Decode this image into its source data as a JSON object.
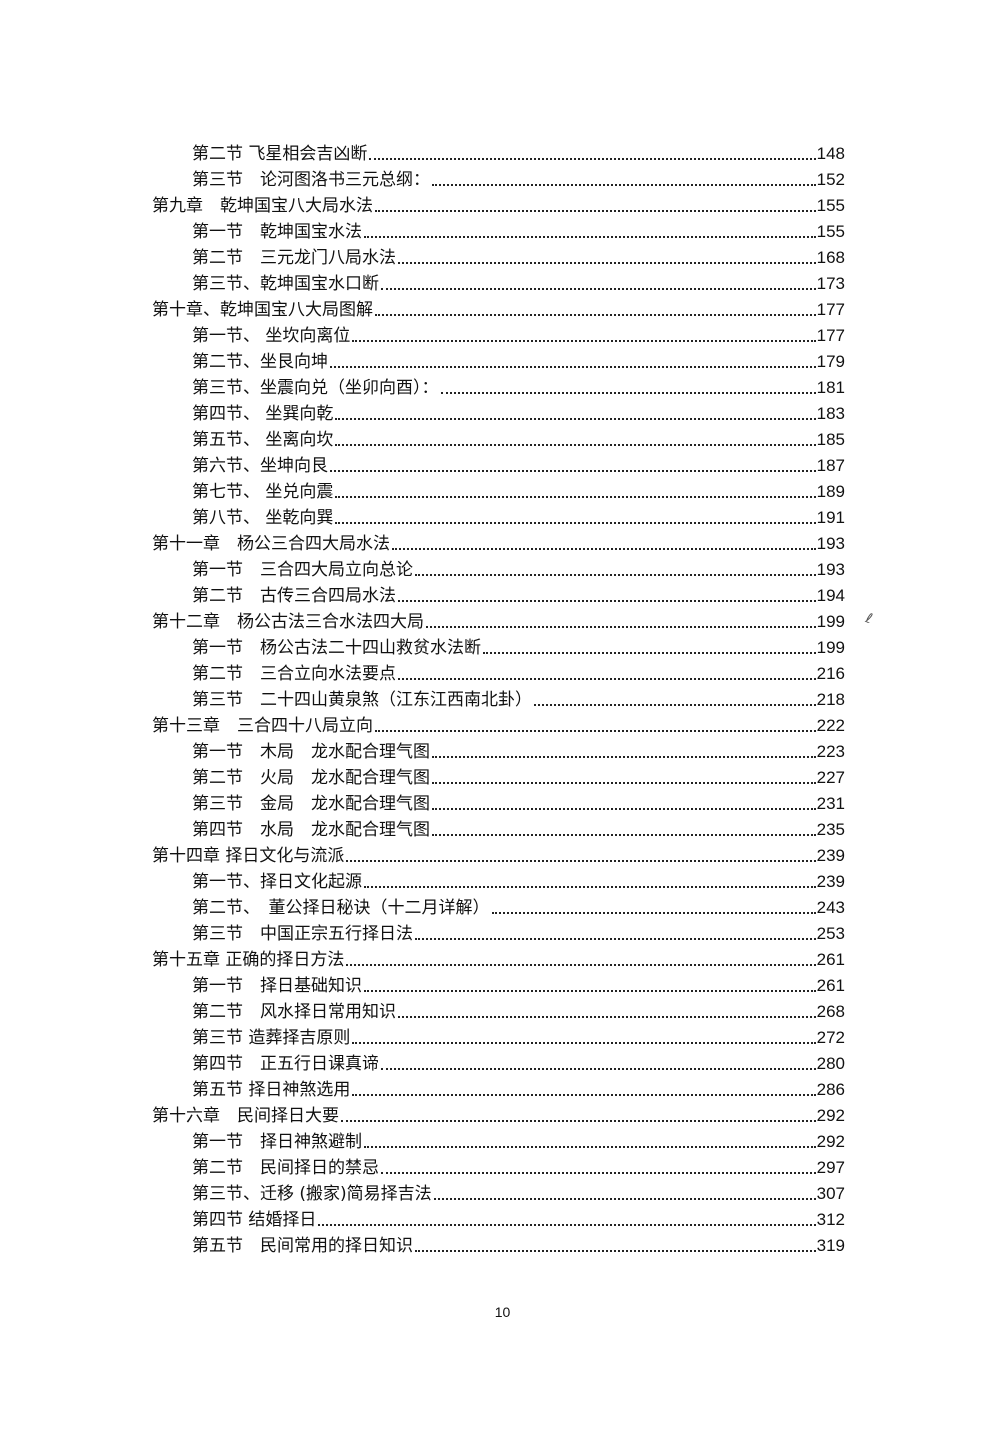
{
  "toc": [
    {
      "level": "section",
      "title": "第二节 飞星相会吉凶断",
      "page": "148"
    },
    {
      "level": "section",
      "title": "第三节　论河图洛书三元总纲：",
      "page": "152"
    },
    {
      "level": "chapter",
      "title": "第九章　乾坤国宝八大局水法",
      "page": "155"
    },
    {
      "level": "section",
      "title": "第一节　乾坤国宝水法",
      "page": "155"
    },
    {
      "level": "section",
      "title": "第二节　三元龙门八局水法",
      "page": "168"
    },
    {
      "level": "section",
      "title": "第三节、乾坤国宝水口断",
      "page": "173"
    },
    {
      "level": "chapter",
      "title": "第十章、乾坤国宝八大局图解",
      "page": "177"
    },
    {
      "level": "section",
      "title": "第一节、 坐坎向离位",
      "page": "177"
    },
    {
      "level": "section",
      "title": "第二节、坐艮向坤",
      "page": "179"
    },
    {
      "level": "section",
      "title": "第三节、坐震向兑（坐卯向酉）：",
      "page": "181"
    },
    {
      "level": "section",
      "title": "第四节、 坐巽向乾",
      "page": "183"
    },
    {
      "level": "section",
      "title": "第五节、 坐离向坎",
      "page": "185"
    },
    {
      "level": "section",
      "title": "第六节、坐坤向艮",
      "page": "187"
    },
    {
      "level": "section",
      "title": "第七节、 坐兑向震",
      "page": "189"
    },
    {
      "level": "section",
      "title": "第八节、 坐乾向巽",
      "page": "191"
    },
    {
      "level": "chapter",
      "title": "第十一章　杨公三合四大局水法",
      "page": "193"
    },
    {
      "level": "section",
      "title": "第一节　三合四大局立向总论",
      "page": "193"
    },
    {
      "level": "section",
      "title": "第二节　古传三合四局水法",
      "page": "194"
    },
    {
      "level": "chapter",
      "title": "第十二章　杨公古法三合水法四大局",
      "page": "199"
    },
    {
      "level": "section",
      "title": "第一节　杨公古法二十四山救贫水法断",
      "page": "199"
    },
    {
      "level": "section",
      "title": "第二节　三合立向水法要点",
      "page": "216"
    },
    {
      "level": "section",
      "title": "第三节　二十四山黄泉煞（江东江西南北卦）",
      "page": "218"
    },
    {
      "level": "chapter",
      "title": "第十三章　三合四十八局立向",
      "page": "222"
    },
    {
      "level": "section",
      "title": "第一节　木局　龙水配合理气图",
      "page": "223"
    },
    {
      "level": "section",
      "title": "第二节　火局　龙水配合理气图",
      "page": "227"
    },
    {
      "level": "section",
      "title": "第三节　金局　龙水配合理气图",
      "page": "231"
    },
    {
      "level": "section",
      "title": "第四节　水局　龙水配合理气图",
      "page": "235"
    },
    {
      "level": "chapter",
      "title": "第十四章 择日文化与流派",
      "page": "239"
    },
    {
      "level": "section",
      "title": "第一节、择日文化起源",
      "page": "239"
    },
    {
      "level": "section",
      "title": "第二节、　董公择日秘诀（十二月详解）",
      "page": "243"
    },
    {
      "level": "section",
      "title": "第三节　中国正宗五行择日法",
      "page": "253"
    },
    {
      "level": "chapter",
      "title": "第十五章 正确的择日方法",
      "page": "261"
    },
    {
      "level": "section",
      "title": "第一节　择日基础知识",
      "page": "261"
    },
    {
      "level": "section",
      "title": "第二节　风水择日常用知识",
      "page": "268"
    },
    {
      "level": "section",
      "title": "第三节 造葬择吉原则",
      "page": "272"
    },
    {
      "level": "section",
      "title": "第四节　正五行日课真谛",
      "page": "280"
    },
    {
      "level": "section",
      "title": "第五节 择日神煞选用",
      "page": "286"
    },
    {
      "level": "chapter",
      "title": "第十六章　民间择日大要",
      "page": "292"
    },
    {
      "level": "section",
      "title": "第一节　择日神煞避制",
      "page": "292"
    },
    {
      "level": "section",
      "title": "第二节　民间择日的禁忌",
      "page": "297"
    },
    {
      "level": "section",
      "title": "第三节、迁移 (搬家)简易择吉法",
      "page": "307"
    },
    {
      "level": "section",
      "title": "第四节 结婚择日",
      "page": "312"
    },
    {
      "level": "section",
      "title": "第五节　民间常用的择日知识",
      "page": "319"
    }
  ],
  "page_number": "10"
}
